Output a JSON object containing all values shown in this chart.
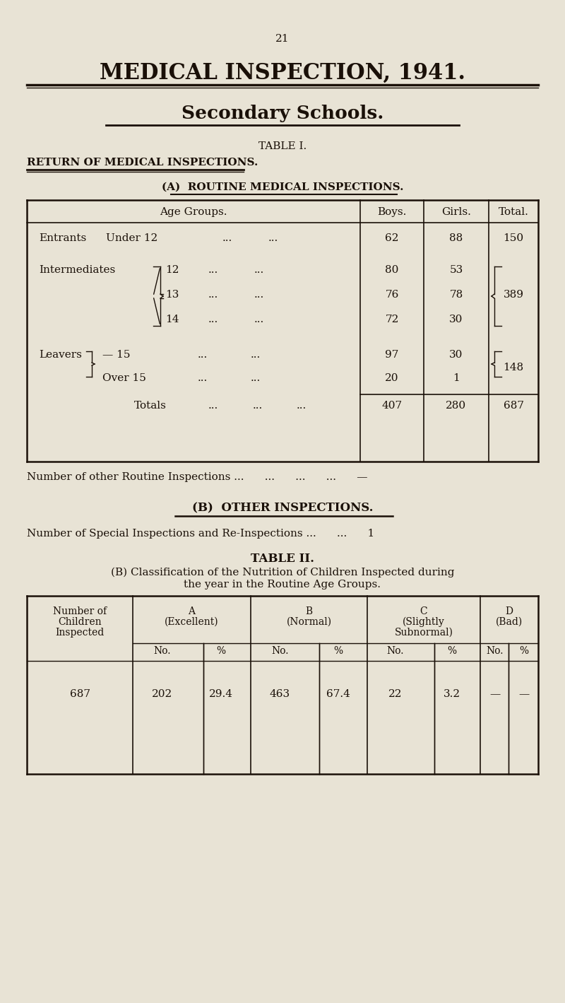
{
  "bg_color": "#e8e3d5",
  "text_color": "#1a1008",
  "page_number": "21",
  "title1": "MEDICAL INSPECTION, 1941.",
  "title2": "Secondary Schools.",
  "table1_title": "TABLE I.",
  "section_a_header": "RETURN OF MEDICAL INSPECTIONS.",
  "section_a_subheader": "(A)  ROUTINE MEDICAL INSPECTIONS.",
  "other_routine_text": "Number of other Routine Inspections ...          ...          ...          ...          —",
  "section_b_header": "(B)  OTHER INSPECTIONS.",
  "special_inspections_text": "Number of Special Inspections and Re-Inspections ...          ...          1",
  "table2_title": "TABLE II.",
  "table2_desc1": "(B) Classification of the Nutrition of Children Inspected during",
  "table2_desc2": "the year in the Routine Age Groups."
}
